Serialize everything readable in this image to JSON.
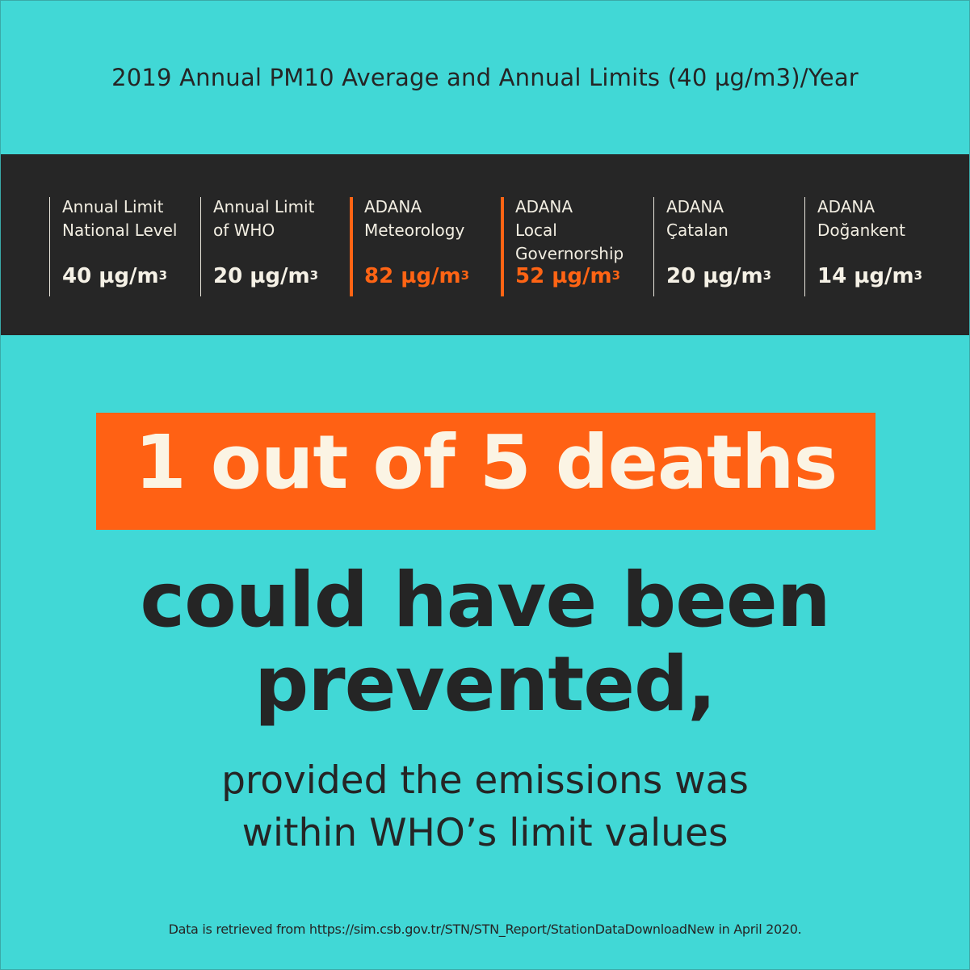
{
  "title": "2019 Annual PM10 Average and Annual Limits (40 µg/m3)/Year",
  "stats": [
    {
      "label_lines": [
        "Annual Limit",
        "National Level"
      ],
      "value": "40 µg/m",
      "unit_sup": "3",
      "highlight": false
    },
    {
      "label_lines": [
        "Annual Limit",
        "of WHO"
      ],
      "value": "20 µg/m",
      "unit_sup": "3",
      "highlight": false
    },
    {
      "label_lines": [
        "ADANA",
        "Meteorology"
      ],
      "value": "82 µg/m",
      "unit_sup": "3",
      "highlight": true
    },
    {
      "label_lines": [
        "ADANA",
        "Local",
        "Governorship"
      ],
      "value": "52 µg/m",
      "unit_sup": "3",
      "highlight": true
    },
    {
      "label_lines": [
        "ADANA",
        "Çatalan"
      ],
      "value": "20 µg/m",
      "unit_sup": "3",
      "highlight": false
    },
    {
      "label_lines": [
        "ADANA",
        "Doğankent"
      ],
      "value": "14 µg/m",
      "unit_sup": "3",
      "highlight": false
    }
  ],
  "headline": {
    "highlight": "1 out of 5 deaths",
    "line1": "could have been",
    "line2": "prevented,"
  },
  "subtext": {
    "line1": "provided the emissions was",
    "line2": "within WHO’s limit values"
  },
  "source": "Data is retrieved from https://sim.csb.gov.tr/STN/STN_Report/StationDataDownloadNew in April 2020.",
  "colors": {
    "background": "#41d8d6",
    "band": "#262626",
    "accent": "#ff6414",
    "text_dark": "#252525",
    "text_light": "#f5f1e6"
  }
}
